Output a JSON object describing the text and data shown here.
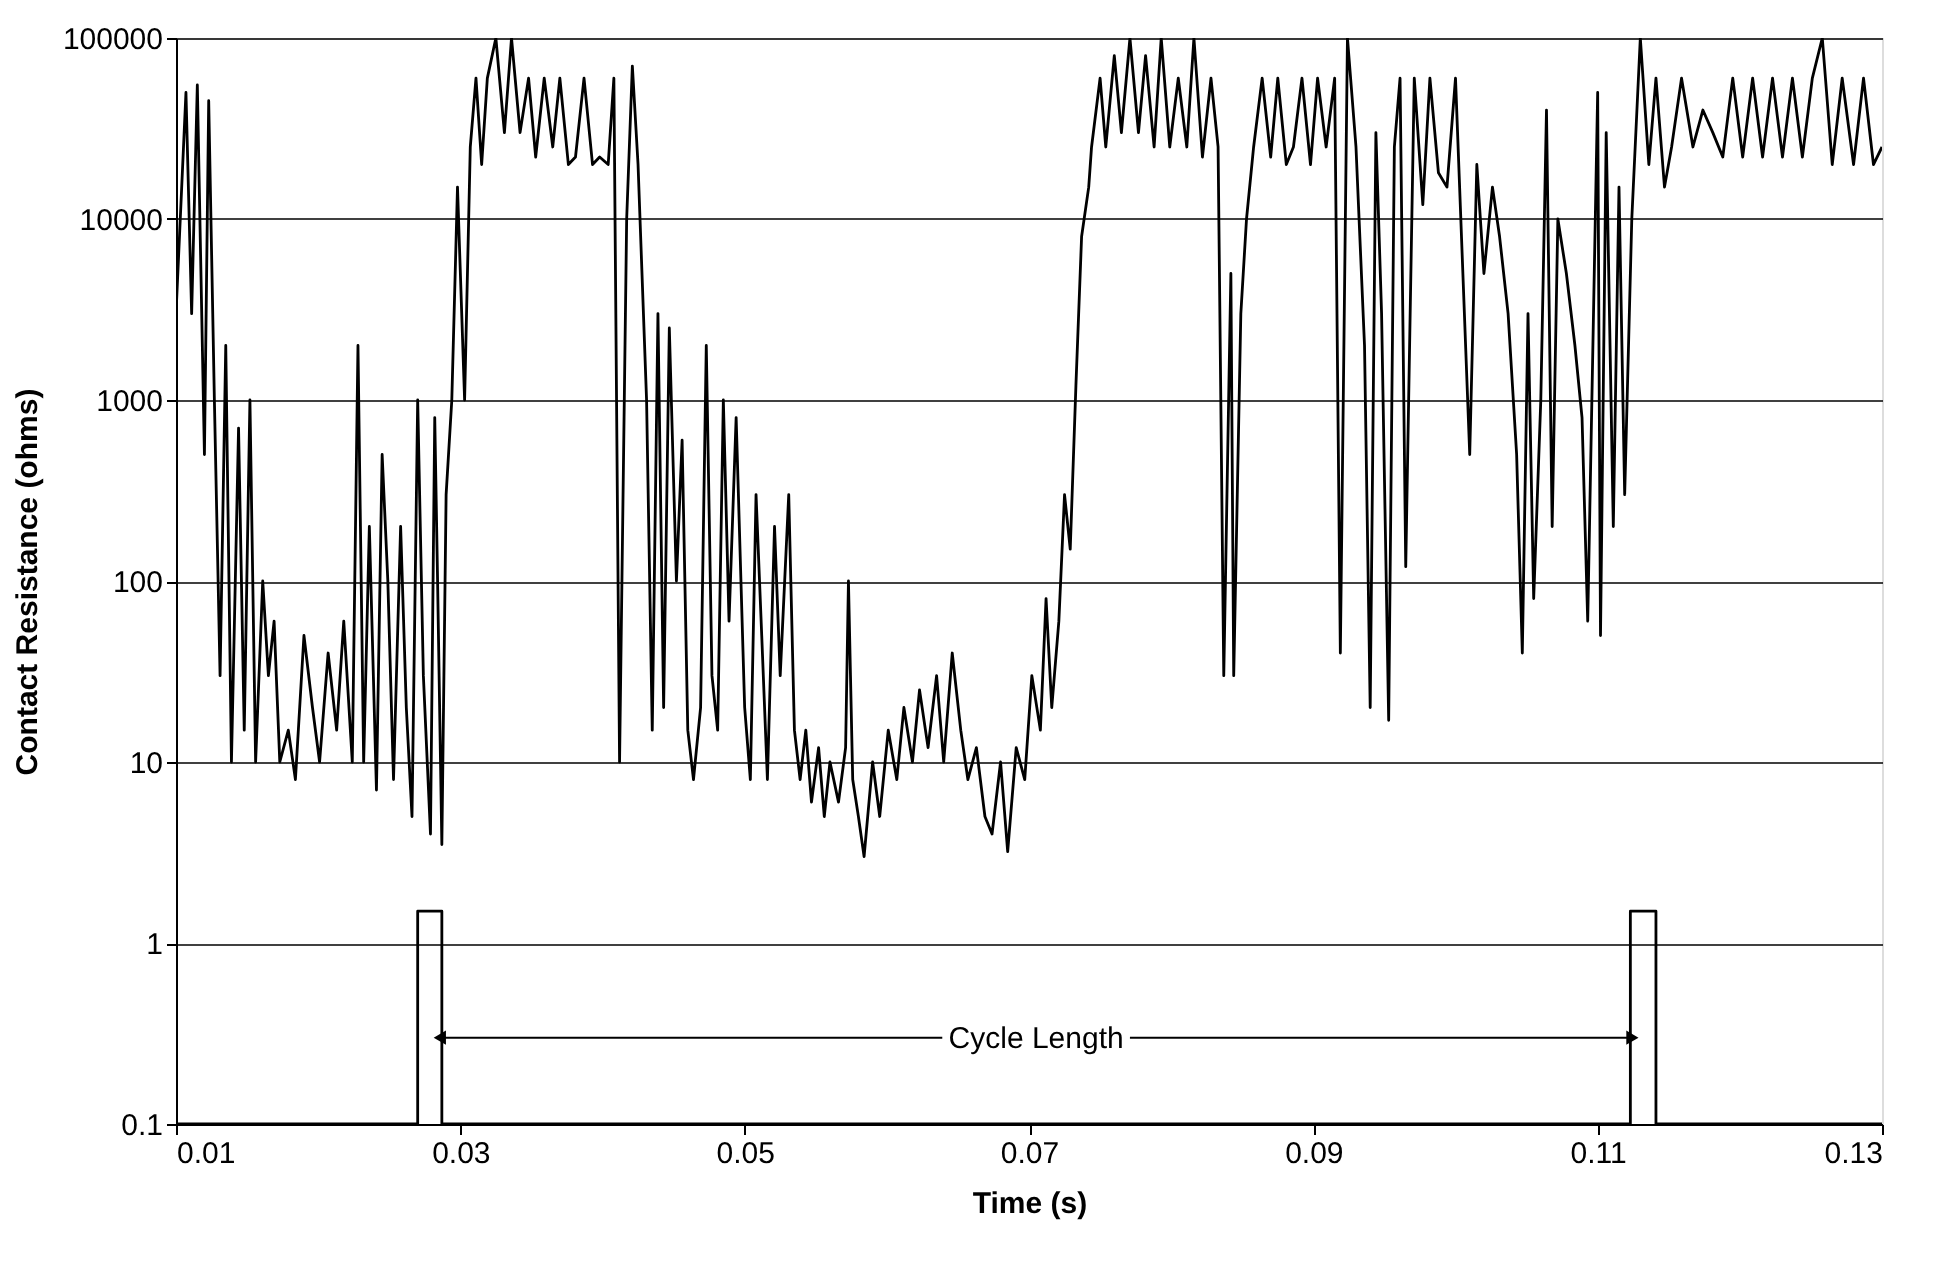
{
  "chart_data": {
    "type": "line",
    "xlabel": "Time (s)",
    "ylabel": "Contact Resistance (ohms)",
    "log": "y",
    "grid": "y",
    "legend": false,
    "marker": "none",
    "line_style": "solid",
    "xlim": [
      0.01,
      0.13
    ],
    "xticks": [
      0.01,
      0.03,
      0.05,
      0.07,
      0.09,
      0.11,
      0.13
    ],
    "ylim": [
      0.1,
      100000
    ],
    "yticks": [
      0.1,
      1,
      10,
      100,
      1000,
      10000,
      100000
    ],
    "annotations": [
      {
        "text": "Cycle Length",
        "x": 0.1123,
        "y": 0.3
      }
    ],
    "series": [
      {
        "color": "#000000",
        "x": [
          0.01,
          0.0103,
          0.0107,
          0.0111,
          0.0115,
          0.012,
          0.0123,
          0.0127,
          0.0131,
          0.0135,
          0.0139,
          0.0144,
          0.0148,
          0.0152,
          0.0156,
          0.0161,
          0.0165,
          0.0169,
          0.0173,
          0.0179,
          0.0184,
          0.019,
          0.0196,
          0.0201,
          0.0207,
          0.0213,
          0.0218,
          0.0224,
          0.0228,
          0.0232,
          0.0236,
          0.0241,
          0.0245,
          0.0249,
          0.0253,
          0.0258,
          0.0262,
          0.0266,
          0.027,
          0.0274,
          0.0279,
          0.0282,
          0.0284,
          0.0287,
          0.029,
          0.0294,
          0.0298,
          0.0303,
          0.0307,
          0.0311,
          0.0315,
          0.0319,
          0.0325,
          0.0331,
          0.0336,
          0.0342,
          0.0348,
          0.0353,
          0.0359,
          0.0365,
          0.037,
          0.0376,
          0.0381,
          0.0387,
          0.0393,
          0.0398,
          0.0404,
          0.0408,
          0.0412,
          0.0417,
          0.0421,
          0.0425,
          0.0431,
          0.0435,
          0.0439,
          0.0443,
          0.0447,
          0.0452,
          0.0456,
          0.046,
          0.0464,
          0.0469,
          0.0473,
          0.0477,
          0.0481,
          0.0485,
          0.0489,
          0.0494,
          0.05,
          0.0504,
          0.0508,
          0.0512,
          0.0516,
          0.0521,
          0.0525,
          0.0531,
          0.0535,
          0.0539,
          0.0543,
          0.0547,
          0.0552,
          0.0556,
          0.056,
          0.0566,
          0.0571,
          0.0573,
          0.0576,
          0.058,
          0.0584,
          0.059,
          0.0595,
          0.0601,
          0.0607,
          0.0612,
          0.0618,
          0.0623,
          0.0629,
          0.0635,
          0.064,
          0.0646,
          0.0652,
          0.0657,
          0.0663,
          0.0669,
          0.0674,
          0.068,
          0.0685,
          0.0691,
          0.0697,
          0.0702,
          0.0708,
          0.0712,
          0.0716,
          0.0721,
          0.0725,
          0.0729,
          0.0733,
          0.0737,
          0.0742,
          0.0744,
          0.075,
          0.0754,
          0.076,
          0.0765,
          0.0771,
          0.0777,
          0.0782,
          0.0788,
          0.0793,
          0.0799,
          0.0805,
          0.0811,
          0.0816,
          0.0822,
          0.0828,
          0.0833,
          0.0837,
          0.0842,
          0.0844,
          0.0849,
          0.0853,
          0.0858,
          0.0864,
          0.087,
          0.0875,
          0.0881,
          0.0886,
          0.0892,
          0.0898,
          0.0903,
          0.0909,
          0.0915,
          0.0919,
          0.0924,
          0.093,
          0.0936,
          0.094,
          0.0944,
          0.0948,
          0.0953,
          0.0957,
          0.0961,
          0.0965,
          0.0971,
          0.0977,
          0.0982,
          0.0988,
          0.0994,
          0.1,
          0.101,
          0.1015,
          0.102,
          0.1026,
          0.1031,
          0.1037,
          0.1043,
          0.1047,
          0.1051,
          0.1055,
          0.106,
          0.1064,
          0.1068,
          0.1072,
          0.1078,
          0.1084,
          0.1089,
          0.1093,
          0.11,
          0.1102,
          0.1106,
          0.1111,
          0.1115,
          0.1119,
          0.1124,
          0.113,
          0.1136,
          0.1141,
          0.1147,
          0.1152,
          0.1159,
          0.1167,
          0.1174,
          0.1181,
          0.1188,
          0.1195,
          0.1202,
          0.1209,
          0.1216,
          0.1223,
          0.123,
          0.1237,
          0.1244,
          0.1251,
          0.1258,
          0.1265,
          0.1272,
          0.128,
          0.1287,
          0.1294,
          0.13
        ],
        "values": [
          3000,
          10000,
          50000,
          3000,
          55000,
          500,
          45000,
          1000,
          30,
          2000,
          10,
          700,
          15,
          1000,
          10,
          100,
          30,
          60,
          10,
          15,
          8,
          50,
          20,
          10,
          40,
          15,
          60,
          10,
          2000,
          10,
          200,
          7,
          500,
          100,
          8,
          200,
          20,
          5,
          1000,
          30,
          4,
          800,
          100,
          3.5,
          300,
          1000,
          15000,
          1000,
          25000,
          60000,
          20000,
          60000,
          100000,
          30000,
          100000,
          30000,
          60000,
          22000,
          60000,
          25000,
          60000,
          20000,
          22000,
          60000,
          20000,
          22000,
          20000,
          60000,
          10,
          10000,
          70000,
          20000,
          1000,
          15,
          3000,
          20,
          2500,
          100,
          600,
          15,
          8,
          20,
          2000,
          30,
          15,
          1000,
          60,
          800,
          20,
          8,
          300,
          50,
          8,
          200,
          30,
          300,
          15,
          8,
          15,
          6,
          12,
          5,
          10,
          6,
          12,
          100,
          8,
          5,
          3,
          10,
          5,
          15,
          8,
          20,
          10,
          25,
          12,
          30,
          10,
          40,
          15,
          8,
          12,
          5,
          4,
          10,
          3.2,
          12,
          8,
          30,
          15,
          80,
          20,
          60,
          300,
          150,
          1200,
          8000,
          15000,
          25000,
          60000,
          25000,
          80000,
          30000,
          100000,
          30000,
          80000,
          25000,
          100000,
          25000,
          60000,
          25000,
          100000,
          22000,
          60000,
          25000,
          30,
          5000,
          30,
          3000,
          10000,
          25000,
          60000,
          22000,
          60000,
          20000,
          25000,
          60000,
          20000,
          60000,
          25000,
          60000,
          40,
          100000,
          25000,
          2000,
          20,
          30000,
          3000,
          17,
          25000,
          60000,
          120,
          60000,
          12000,
          60000,
          18000,
          15000,
          60000,
          500,
          20000,
          5000,
          15000,
          8000,
          3000,
          500,
          40,
          3000,
          80,
          1000,
          40000,
          200,
          10000,
          5000,
          2000,
          800,
          60,
          50000,
          50,
          30000,
          200,
          15000,
          300,
          10000,
          100000,
          20000,
          60000,
          15000,
          25000,
          60000,
          25000,
          40000,
          30000,
          22000,
          60000,
          22000,
          60000,
          22000,
          60000,
          22000,
          60000,
          22000,
          60000,
          100000,
          20000,
          60000,
          20000,
          60000,
          20000,
          25000
        ]
      },
      {
        "color": "#000000",
        "x": [
          0.01,
          0.027,
          0.027,
          0.0287,
          0.0287,
          0.1123,
          0.1123,
          0.1141,
          0.1141,
          0.13
        ],
        "values": [
          0.1,
          0.1,
          1.5,
          1.5,
          0.1,
          0.1,
          1.5,
          1.5,
          0.1,
          0.1
        ]
      }
    ]
  }
}
